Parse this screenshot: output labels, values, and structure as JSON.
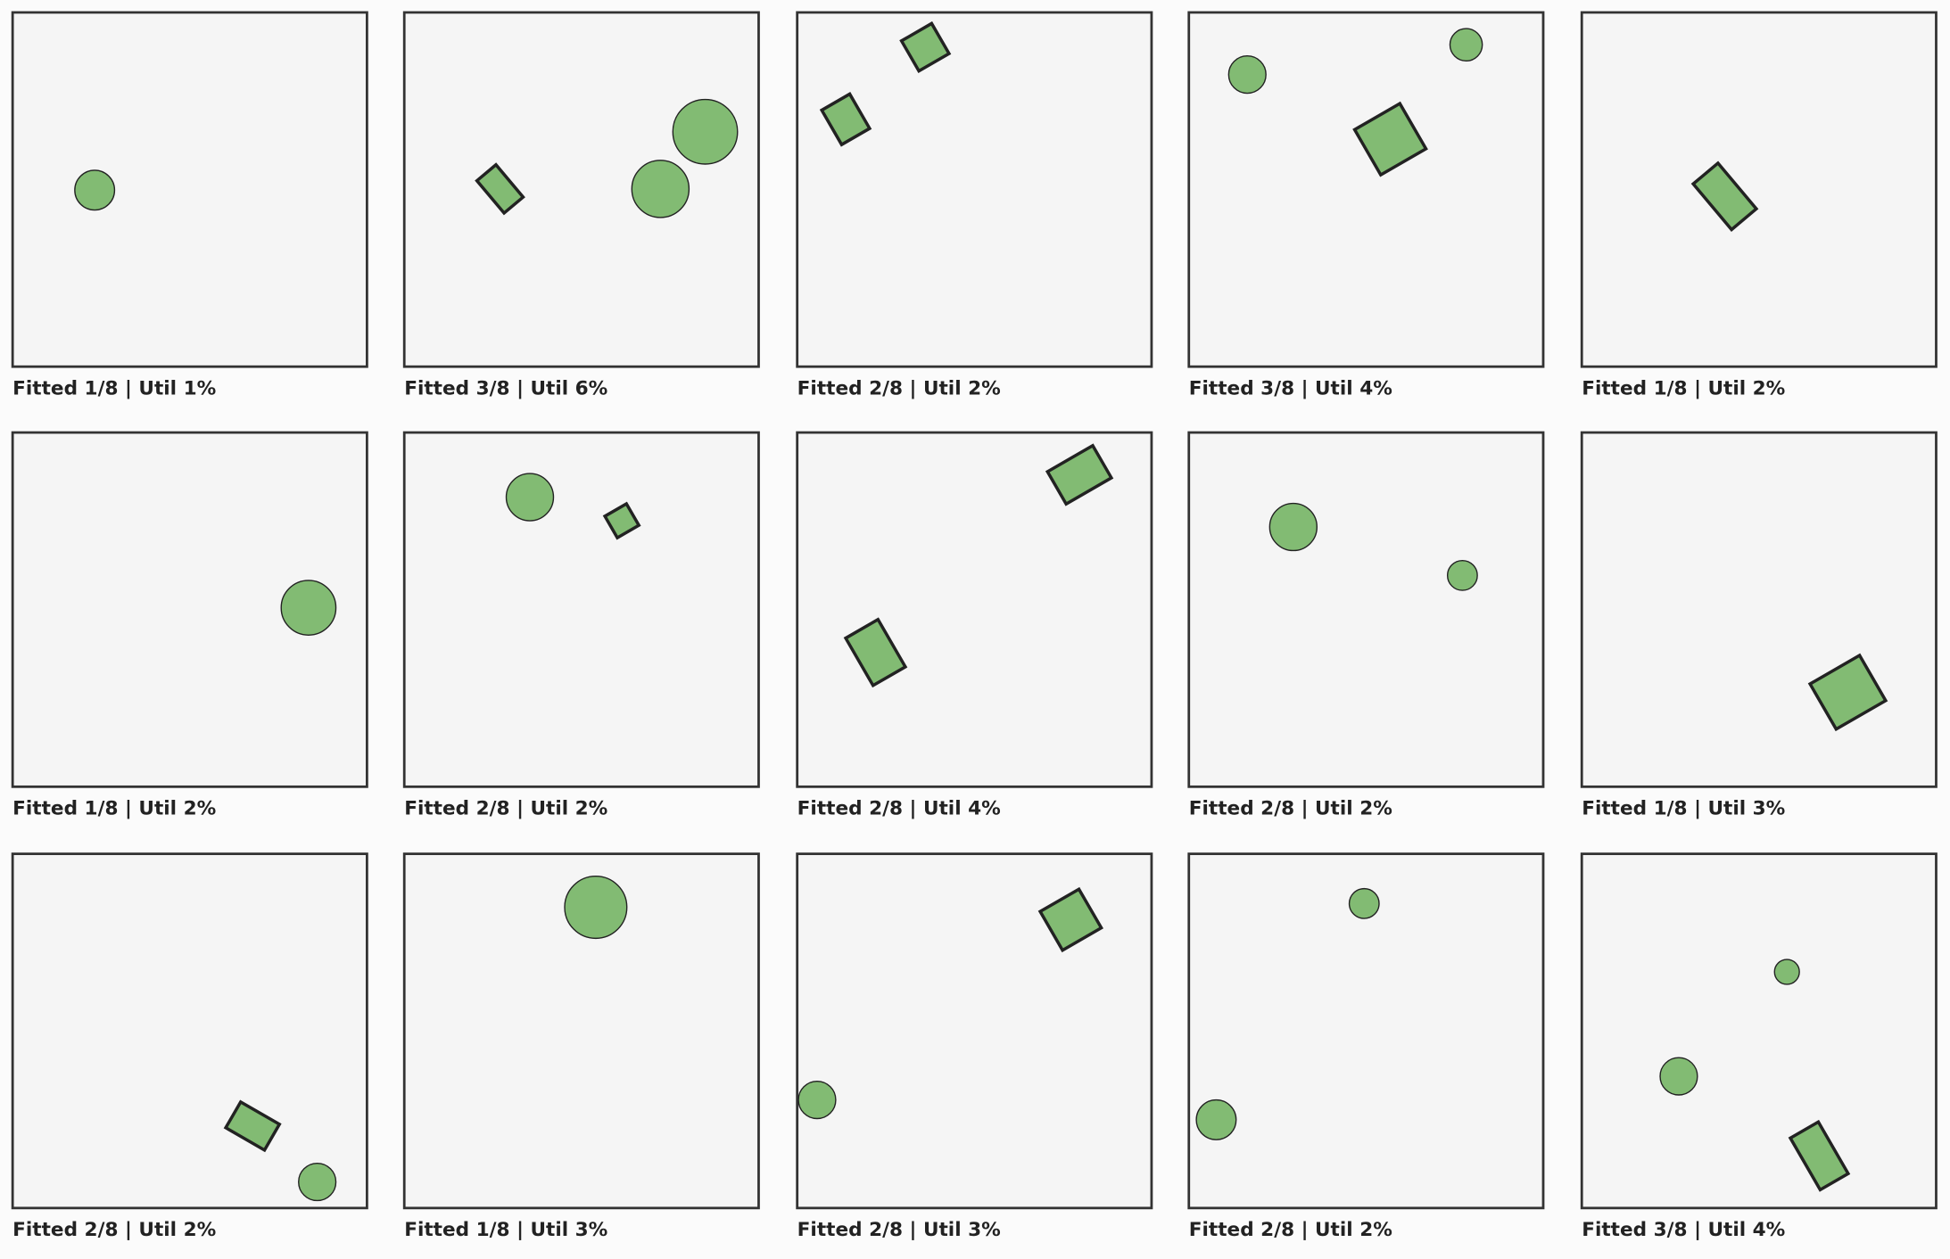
{
  "panels": [
    {
      "caption": "Fitted 1/8 | Util 1%"
    },
    {
      "caption": "Fitted 3/8 | Util 6%"
    },
    {
      "caption": "Fitted 2/8 | Util 2%"
    },
    {
      "caption": "Fitted 3/8 | Util 4%"
    },
    {
      "caption": "Fitted 1/8 | Util 2%"
    },
    {
      "caption": "Fitted 1/8 | Util 2%"
    },
    {
      "caption": "Fitted 2/8 | Util 2%"
    },
    {
      "caption": "Fitted 2/8 | Util 4%"
    },
    {
      "caption": "Fitted 2/8 | Util 2%"
    },
    {
      "caption": "Fitted 1/8 | Util 3%"
    },
    {
      "caption": "Fitted 2/8 | Util 2%"
    },
    {
      "caption": "Fitted 1/8 | Util 3%"
    },
    {
      "caption": "Fitted 2/8 | Util 3%"
    },
    {
      "caption": "Fitted 2/8 | Util 2%"
    },
    {
      "caption": "Fitted 3/8 | Util 4%"
    }
  ]
}
